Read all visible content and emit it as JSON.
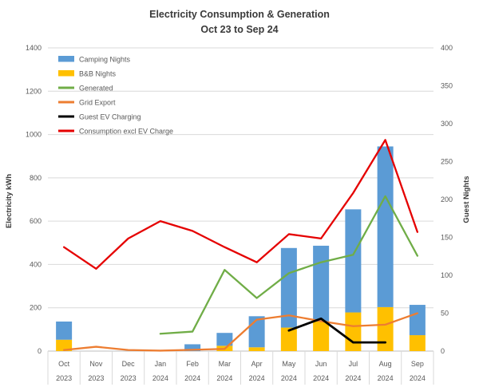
{
  "title": {
    "line1": "Electricity Consumption & Generation",
    "line2": "Oct 23 to Sep 24"
  },
  "chart_data": {
    "type": "combo: stacked column (guest nights) + lines (kWh)",
    "months": [
      "Oct",
      "Nov",
      "Dec",
      "Jan",
      "Feb",
      "Mar",
      "Apr",
      "May",
      "Jun",
      "Jul",
      "Aug",
      "Sep"
    ],
    "years": [
      "2023",
      "2023",
      "2023",
      "2024",
      "2024",
      "2024",
      "2024",
      "2024",
      "2024",
      "2024",
      "2024",
      "2024"
    ],
    "left_axis": {
      "label": "Electricity kWh",
      "min": 0,
      "max": 1400,
      "step": 200,
      "ticks": [
        0,
        200,
        400,
        600,
        800,
        1000,
        1200,
        1400
      ]
    },
    "right_axis": {
      "label": "Guest Nights",
      "min": 0,
      "max": 400,
      "step": 50,
      "ticks": [
        0,
        50,
        100,
        150,
        200,
        250,
        300,
        350,
        400
      ]
    },
    "bar_series": [
      {
        "name": "Camping Nights",
        "axis": "right",
        "color": "#5B9BD5",
        "stack": "top",
        "values": [
          24,
          0,
          0,
          0,
          9,
          17,
          41,
          105,
          100,
          136,
          212,
          40
        ]
      },
      {
        "name": "B&B Nights",
        "axis": "right",
        "color": "#FFC000",
        "stack": "bottom",
        "values": [
          15,
          0,
          0,
          0,
          0,
          7,
          5,
          31,
          39,
          51,
          58,
          21
        ]
      }
    ],
    "line_series": [
      {
        "name": "Generated",
        "axis": "left",
        "color": "#70AD47",
        "values": [
          null,
          null,
          null,
          80,
          90,
          375,
          245,
          360,
          410,
          445,
          715,
          440
        ]
      },
      {
        "name": "Grid Export",
        "axis": "left",
        "color": "#ED7D31",
        "values": [
          5,
          20,
          5,
          2,
          6,
          10,
          145,
          165,
          138,
          115,
          122,
          175
        ]
      },
      {
        "name": "Guest EV Charging",
        "axis": "left",
        "color": "#000000",
        "values": [
          null,
          null,
          null,
          null,
          null,
          null,
          null,
          95,
          150,
          40,
          40,
          null
        ]
      },
      {
        "name": "Consumption excl EV Charge",
        "axis": "left",
        "color": "#E50000",
        "values": [
          480,
          380,
          520,
          600,
          555,
          480,
          410,
          540,
          520,
          730,
          975,
          550
        ]
      }
    ],
    "legend": [
      "Camping Nights",
      "B&B Nights",
      "Generated",
      "Grid Export",
      "Guest EV Charging",
      "Consumption excl EV Charge"
    ],
    "legend_position": "top-left inside plot",
    "grid": "horizontal only",
    "grid_color": "#d9d9d9",
    "axis_line_color": "#bfbfbf"
  }
}
